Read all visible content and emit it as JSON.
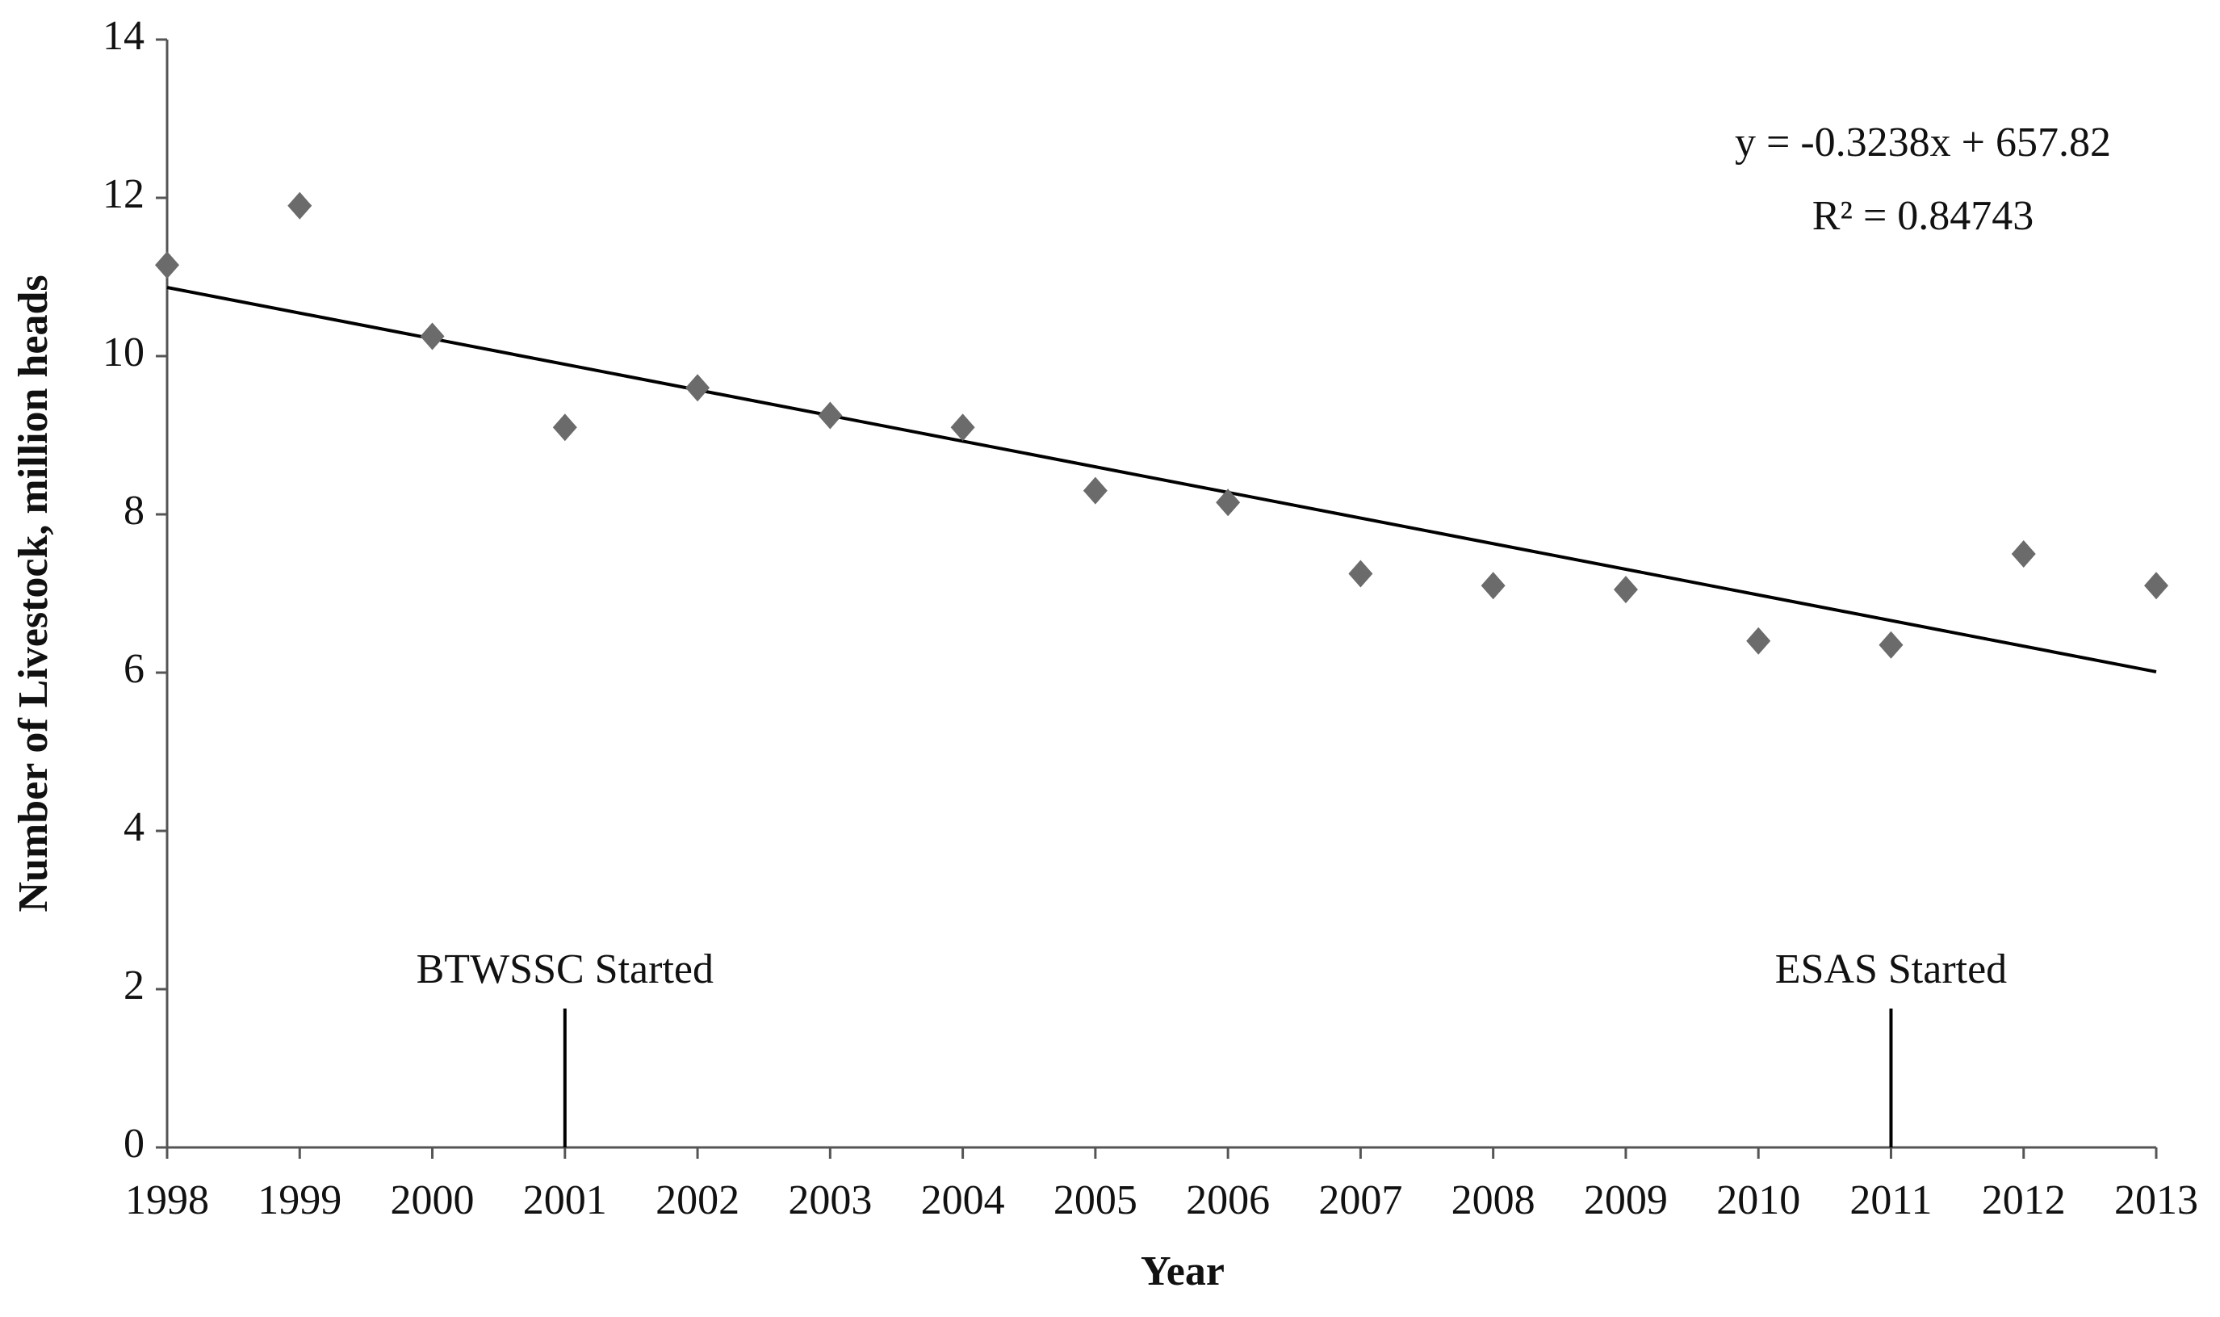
{
  "chart_data": {
    "type": "scatter",
    "x_label": "Year",
    "y_label": "Number of Livestock, million heads",
    "x": [
      1998,
      1999,
      2000,
      2001,
      2002,
      2003,
      2004,
      2005,
      2006,
      2007,
      2008,
      2009,
      2010,
      2011,
      2012,
      2013
    ],
    "values": [
      11.15,
      11.9,
      10.25,
      9.1,
      9.6,
      9.25,
      9.1,
      8.3,
      8.15,
      7.25,
      7.1,
      7.05,
      6.4,
      6.35,
      7.5,
      7.1
    ],
    "color": "#6b6b6b",
    "xlim": [
      1998,
      2013
    ],
    "xticks": [
      1998,
      1999,
      2000,
      2001,
      2002,
      2003,
      2004,
      2005,
      2006,
      2007,
      2008,
      2009,
      2010,
      2011,
      2012,
      2013
    ],
    "ylim": [
      0,
      14
    ],
    "yticks": [
      0,
      2,
      4,
      6,
      8,
      10,
      12,
      14
    ],
    "grid": false,
    "trendline": {
      "slope": -0.3238,
      "intercept": 657.82,
      "equation": "y = -0.3238x + 657.82",
      "r_squared_label": "R² = 0.84743",
      "color": "#000000"
    },
    "annotations": [
      {
        "text": "BTWSSC Started",
        "x": 2001
      },
      {
        "text": "ESAS Started",
        "x": 2011
      }
    ]
  }
}
